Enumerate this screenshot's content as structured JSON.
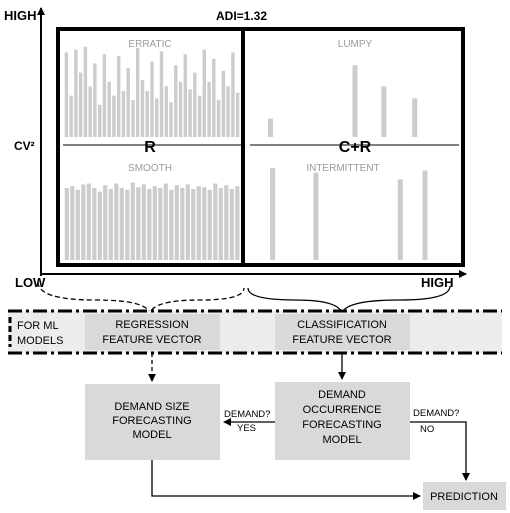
{
  "axes": {
    "y_high": "HIGH",
    "y_label": "CV²",
    "x_low": "LOW",
    "x_high": "HIGH",
    "adi_label": "ADI=1.32"
  },
  "quadrants": {
    "erratic": {
      "label": "ERRATIC",
      "bars": [
        0.92,
        0.45,
        0.95,
        0.7,
        0.98,
        0.55,
        0.8,
        0.35,
        0.9,
        0.6,
        0.45,
        0.88,
        0.5,
        0.75,
        0.4,
        0.97,
        0.62,
        0.5,
        0.82,
        0.42,
        0.93,
        0.55,
        0.38,
        0.78,
        0.6,
        0.9,
        0.52,
        0.7,
        0.45,
        0.95,
        0.6,
        0.85,
        0.4,
        0.72,
        0.55,
        0.92,
        0.48
      ]
    },
    "smooth": {
      "label": "SMOOTH",
      "bars": [
        0.8,
        0.82,
        0.78,
        0.84,
        0.85,
        0.8,
        0.76,
        0.83,
        0.79,
        0.85,
        0.8,
        0.78,
        0.86,
        0.81,
        0.84,
        0.79,
        0.82,
        0.8,
        0.85,
        0.78,
        0.83,
        0.8,
        0.84,
        0.79,
        0.82,
        0.81,
        0.78,
        0.85,
        0.8,
        0.83,
        0.79,
        0.82
      ]
    },
    "lumpy": {
      "label": "LUMPY",
      "bars": [
        0.2,
        0.78,
        0.55,
        0.42
      ]
    },
    "intermittent": {
      "label": "INTERMITTENT",
      "bars": [
        0.82,
        0.78,
        0.72,
        0.8
      ]
    },
    "left_group": "R",
    "right_group": "C+R"
  },
  "ml": {
    "label_line1": "FOR ML",
    "label_line2": "MODELS",
    "regression_line1": "REGRESSION",
    "regression_line2": "FEATURE VECTOR",
    "classification_line1": "CLASSIFICATION",
    "classification_line2": "FEATURE VECTOR"
  },
  "flow": {
    "size_model": [
      "DEMAND SIZE",
      "FORECASTING",
      "MODEL"
    ],
    "occurrence_model": [
      "DEMAND",
      "OCCURRENCE",
      "FORECASTING",
      "MODEL"
    ],
    "yes_q": "DEMAND?",
    "yes": "YES",
    "no_q": "DEMAND?",
    "no": "NO",
    "prediction": "PREDICTION"
  },
  "colors": {
    "bar": "#cccccc",
    "box": "#d9d9d9",
    "band": "#ececec",
    "line": "#000000",
    "faint_text": "#9a9a9a"
  }
}
